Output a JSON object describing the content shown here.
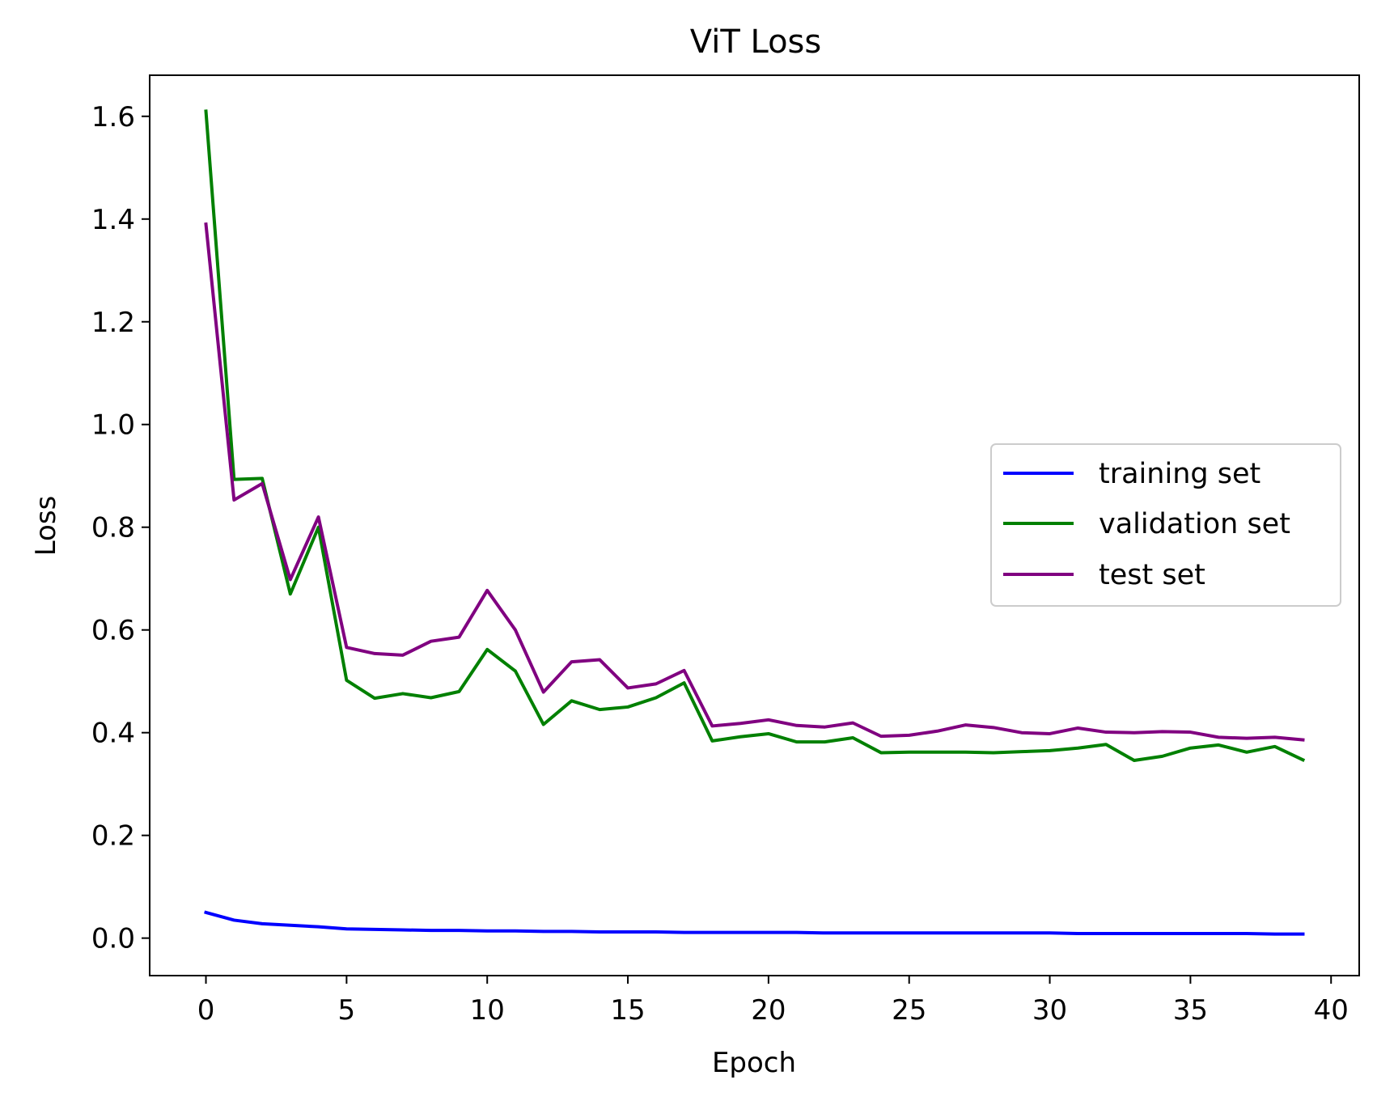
{
  "chart_data": {
    "type": "line",
    "title": "ViT Loss",
    "xlabel": "Epoch",
    "ylabel": "Loss",
    "xlim": [
      -2,
      41
    ],
    "ylim": [
      -0.073,
      1.68
    ],
    "xticks": [
      0,
      5,
      10,
      15,
      20,
      25,
      30,
      35,
      40
    ],
    "yticks": [
      0.0,
      0.2,
      0.4,
      0.6,
      0.8,
      1.0,
      1.2,
      1.4,
      1.6
    ],
    "xtick_labels": [
      "0",
      "5",
      "10",
      "15",
      "20",
      "25",
      "30",
      "35",
      "40"
    ],
    "ytick_labels": [
      "0.0",
      "0.2",
      "0.4",
      "0.6",
      "0.8",
      "1.0",
      "1.2",
      "1.4",
      "1.6"
    ],
    "grid": false,
    "legend_position": "center-right",
    "x": [
      0,
      1,
      2,
      3,
      4,
      5,
      6,
      7,
      8,
      9,
      10,
      11,
      12,
      13,
      14,
      15,
      16,
      17,
      18,
      19,
      20,
      21,
      22,
      23,
      24,
      25,
      26,
      27,
      28,
      29,
      30,
      31,
      32,
      33,
      34,
      35,
      36,
      37,
      38,
      39
    ],
    "series": [
      {
        "name": "training set",
        "color": "#0000ff",
        "values": [
          0.05,
          0.035,
          0.028,
          0.025,
          0.022,
          0.018,
          0.017,
          0.016,
          0.015,
          0.015,
          0.014,
          0.014,
          0.013,
          0.013,
          0.012,
          0.012,
          0.012,
          0.011,
          0.011,
          0.011,
          0.011,
          0.011,
          0.01,
          0.01,
          0.01,
          0.01,
          0.01,
          0.01,
          0.01,
          0.01,
          0.01,
          0.009,
          0.009,
          0.009,
          0.009,
          0.009,
          0.009,
          0.009,
          0.008,
          0.008
        ]
      },
      {
        "name": "validation set",
        "color": "#008000",
        "values": [
          1.61,
          0.893,
          0.895,
          0.67,
          0.8,
          0.502,
          0.467,
          0.476,
          0.468,
          0.48,
          0.562,
          0.52,
          0.416,
          0.462,
          0.445,
          0.45,
          0.468,
          0.497,
          0.384,
          0.392,
          0.398,
          0.382,
          0.382,
          0.39,
          0.361,
          0.362,
          0.362,
          0.362,
          0.361,
          0.363,
          0.365,
          0.37,
          0.377,
          0.346,
          0.354,
          0.37,
          0.376,
          0.362,
          0.373,
          0.347
        ]
      },
      {
        "name": "test set",
        "color": "#800080",
        "values": [
          1.39,
          0.853,
          0.885,
          0.698,
          0.82,
          0.566,
          0.554,
          0.551,
          0.578,
          0.586,
          0.677,
          0.6,
          0.479,
          0.538,
          0.542,
          0.487,
          0.495,
          0.521,
          0.413,
          0.418,
          0.425,
          0.414,
          0.411,
          0.419,
          0.393,
          0.395,
          0.403,
          0.415,
          0.41,
          0.4,
          0.398,
          0.409,
          0.401,
          0.4,
          0.402,
          0.401,
          0.391,
          0.389,
          0.391,
          0.386
        ]
      }
    ]
  }
}
